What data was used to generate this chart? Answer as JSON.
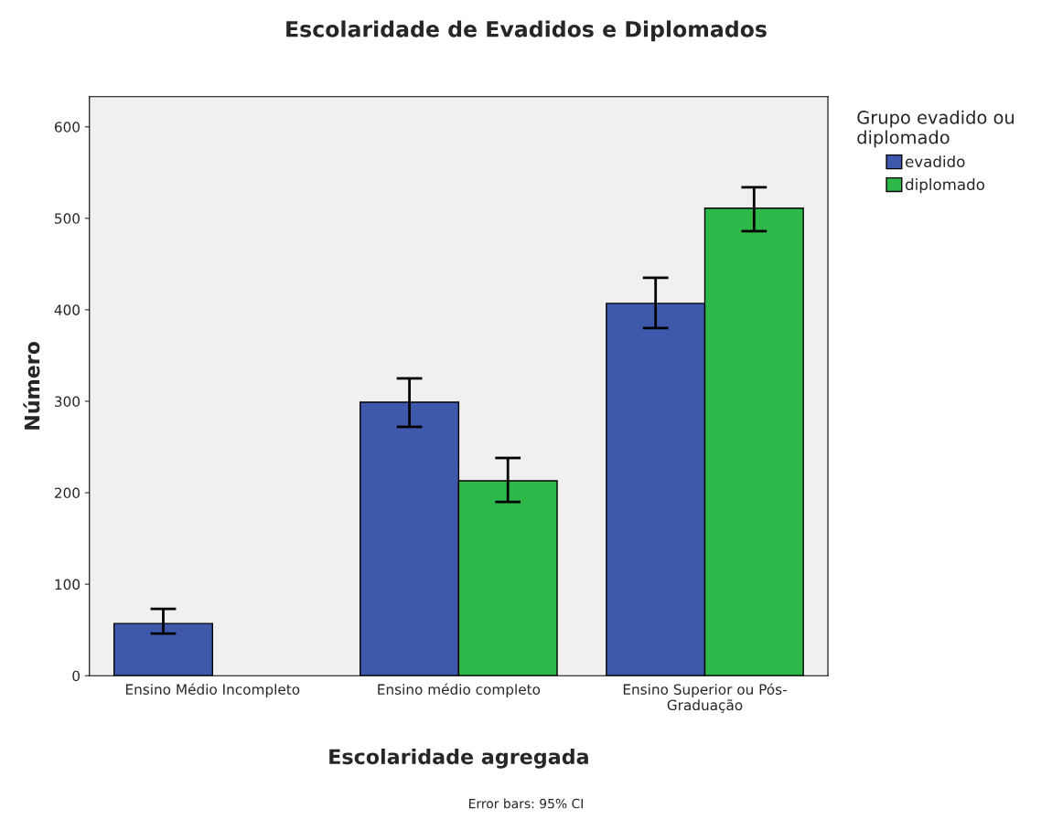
{
  "chart_data": {
    "type": "bar",
    "title": "Escolaridade de Evadidos e Diplomados",
    "xlabel": "Escolaridade agregada",
    "ylabel": "Número",
    "legend_title": "Grupo evadido ou\ndiplomado",
    "categories": [
      "Ensino Médio Incompleto",
      "Ensino médio completo",
      "Ensino Superior ou Pós-\nGraduação"
    ],
    "series": [
      {
        "name": "evadido",
        "color": "#3e58ac",
        "values": [
          57,
          299,
          407
        ],
        "errors": [
          [
            46,
            73
          ],
          [
            272,
            325
          ],
          [
            380,
            435
          ]
        ]
      },
      {
        "name": "diplomado",
        "color": "#2eb84a",
        "values": [
          null,
          213,
          511
        ],
        "errors": [
          null,
          [
            190,
            238
          ],
          [
            486,
            534
          ]
        ]
      }
    ],
    "ylim": [
      0,
      633
    ],
    "yticks": [
      0,
      100,
      200,
      300,
      400,
      500,
      600
    ],
    "grid": false,
    "legend": "top right",
    "annotations": [
      "Error bars: 95% CI"
    ]
  }
}
